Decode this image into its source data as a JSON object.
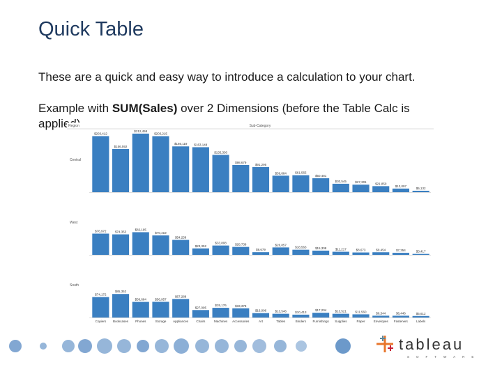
{
  "slide": {
    "title": "Quick Table",
    "intro": "These are a quick and easy way to introduce a calculation to your chart.",
    "example": {
      "before": "Example with ",
      "bold": "SUM(Sales)",
      "after": " over 2 Dimensions (before the Table Calc is applied)"
    },
    "logo": "tableau",
    "logo_sub": "SOFTWARE"
  },
  "chart_data": {
    "type": "bar",
    "row_header": "Region",
    "column_header": "Sub-Category",
    "categories": [
      "Copiers",
      "Bookcases",
      "Phones",
      "Storage",
      "Appliances",
      "Chairs",
      "Machines",
      "Accessories",
      "Art",
      "Tables",
      "Binders",
      "Furnishings",
      "Supplies",
      "Paper",
      "Envelopes",
      "Fasteners",
      "Labels"
    ],
    "ylim": [
      0,
      240000
    ],
    "series": [
      {
        "name": "Central",
        "color": "#3a7fc1",
        "values": [
          203412,
          156592,
          212458,
          203215,
          166119,
          163148,
          135330,
          98679,
          91295,
          59884,
          61565,
          50481,
          30545,
          27301,
          21850,
          13097,
          5132
        ],
        "value_labels": [
          "$203,412",
          "$156,592",
          "$212,458",
          "$203,215",
          "$166,119",
          "$163,148",
          "$135,330",
          "$98,679",
          "$91,295",
          "$59,884",
          "$61,565",
          "$50,481",
          "$30,545",
          "$27,301",
          "$21,850",
          "$13,097",
          "$5,132"
        ]
      },
      {
        "name": "West",
        "color": "#3a7fc1",
        "values": [
          76972,
          74353,
          82195,
          70419,
          54258,
          23352,
          33808,
          28739,
          9679,
          26857,
          18563,
          15308,
          11217,
          8673,
          9454,
          7354,
          3417
        ],
        "value_labels": [
          "$76,972",
          "$74,353",
          "$82,195",
          "$70,419",
          "$54,258",
          "$23,352",
          "$33,808",
          "$28,739",
          "$9,679",
          "$26,857",
          "$18,563",
          "$15,308",
          "$11,217",
          "$8,673",
          "$9,454",
          "$7,354",
          "$3,417"
        ]
      },
      {
        "name": "South",
        "color": "#3a7fc1",
        "values": [
          74172,
          85352,
          56684,
          56957,
          67288,
          27095,
          35176,
          33378,
          16006,
          13546,
          10413,
          17204,
          13521,
          11560,
          6544,
          6446,
          5612
        ],
        "value_labels": [
          "$74,172",
          "$85,352",
          "$56,684",
          "$56,957",
          "$67,288",
          "$27,095",
          "$35,176",
          "$33,378",
          "$16,006",
          "$13,546",
          "$10,413",
          "$17,204",
          "$13,521",
          "$11,560",
          "$6,544",
          "$6,446",
          "$5,612"
        ]
      }
    ]
  }
}
